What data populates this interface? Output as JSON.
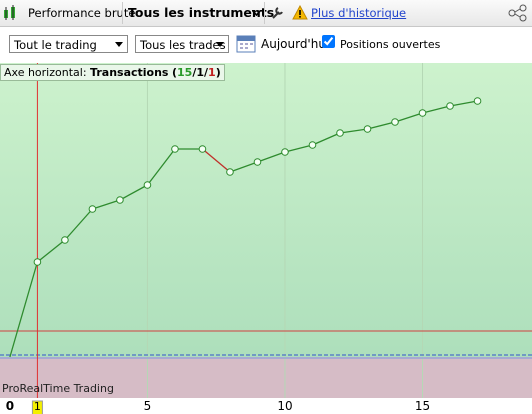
{
  "toolbar": {
    "view": "Performance brute",
    "instruments": "Tous les instruments",
    "history_link": "Plus d'historique"
  },
  "controls": {
    "scope": "Tout le trading",
    "trades": "Tous les trades",
    "date": "Aujourd'hui",
    "open_positions": "Positions ouvertes",
    "open_positions_checked": true
  },
  "chart": {
    "axis_caption": {
      "prefix": "Axe horizontal:",
      "axis": "Transactions",
      "open": "(",
      "wins": 15,
      "sep": "/",
      "neutral": 1,
      "losses": 1,
      "close": ")"
    },
    "watermark": "ProRealTime Trading",
    "x": [
      0,
      1,
      2,
      3,
      4,
      5,
      6,
      7,
      8,
      9,
      10,
      11,
      12,
      13,
      14,
      15,
      16,
      17
    ],
    "values": [
      0,
      95,
      117,
      148,
      157,
      172,
      208,
      208,
      185,
      195,
      205,
      212,
      224,
      228,
      235,
      244,
      251,
      256
    ],
    "line_color": "#2e8b2e",
    "loss_color": "#c0302a",
    "xlim": [
      -0.36,
      18.98
    ],
    "ylim": [
      -41,
      294
    ],
    "xticks": [
      0,
      5,
      10,
      15
    ],
    "cursor_x": 1,
    "reference_line": 26
  }
}
